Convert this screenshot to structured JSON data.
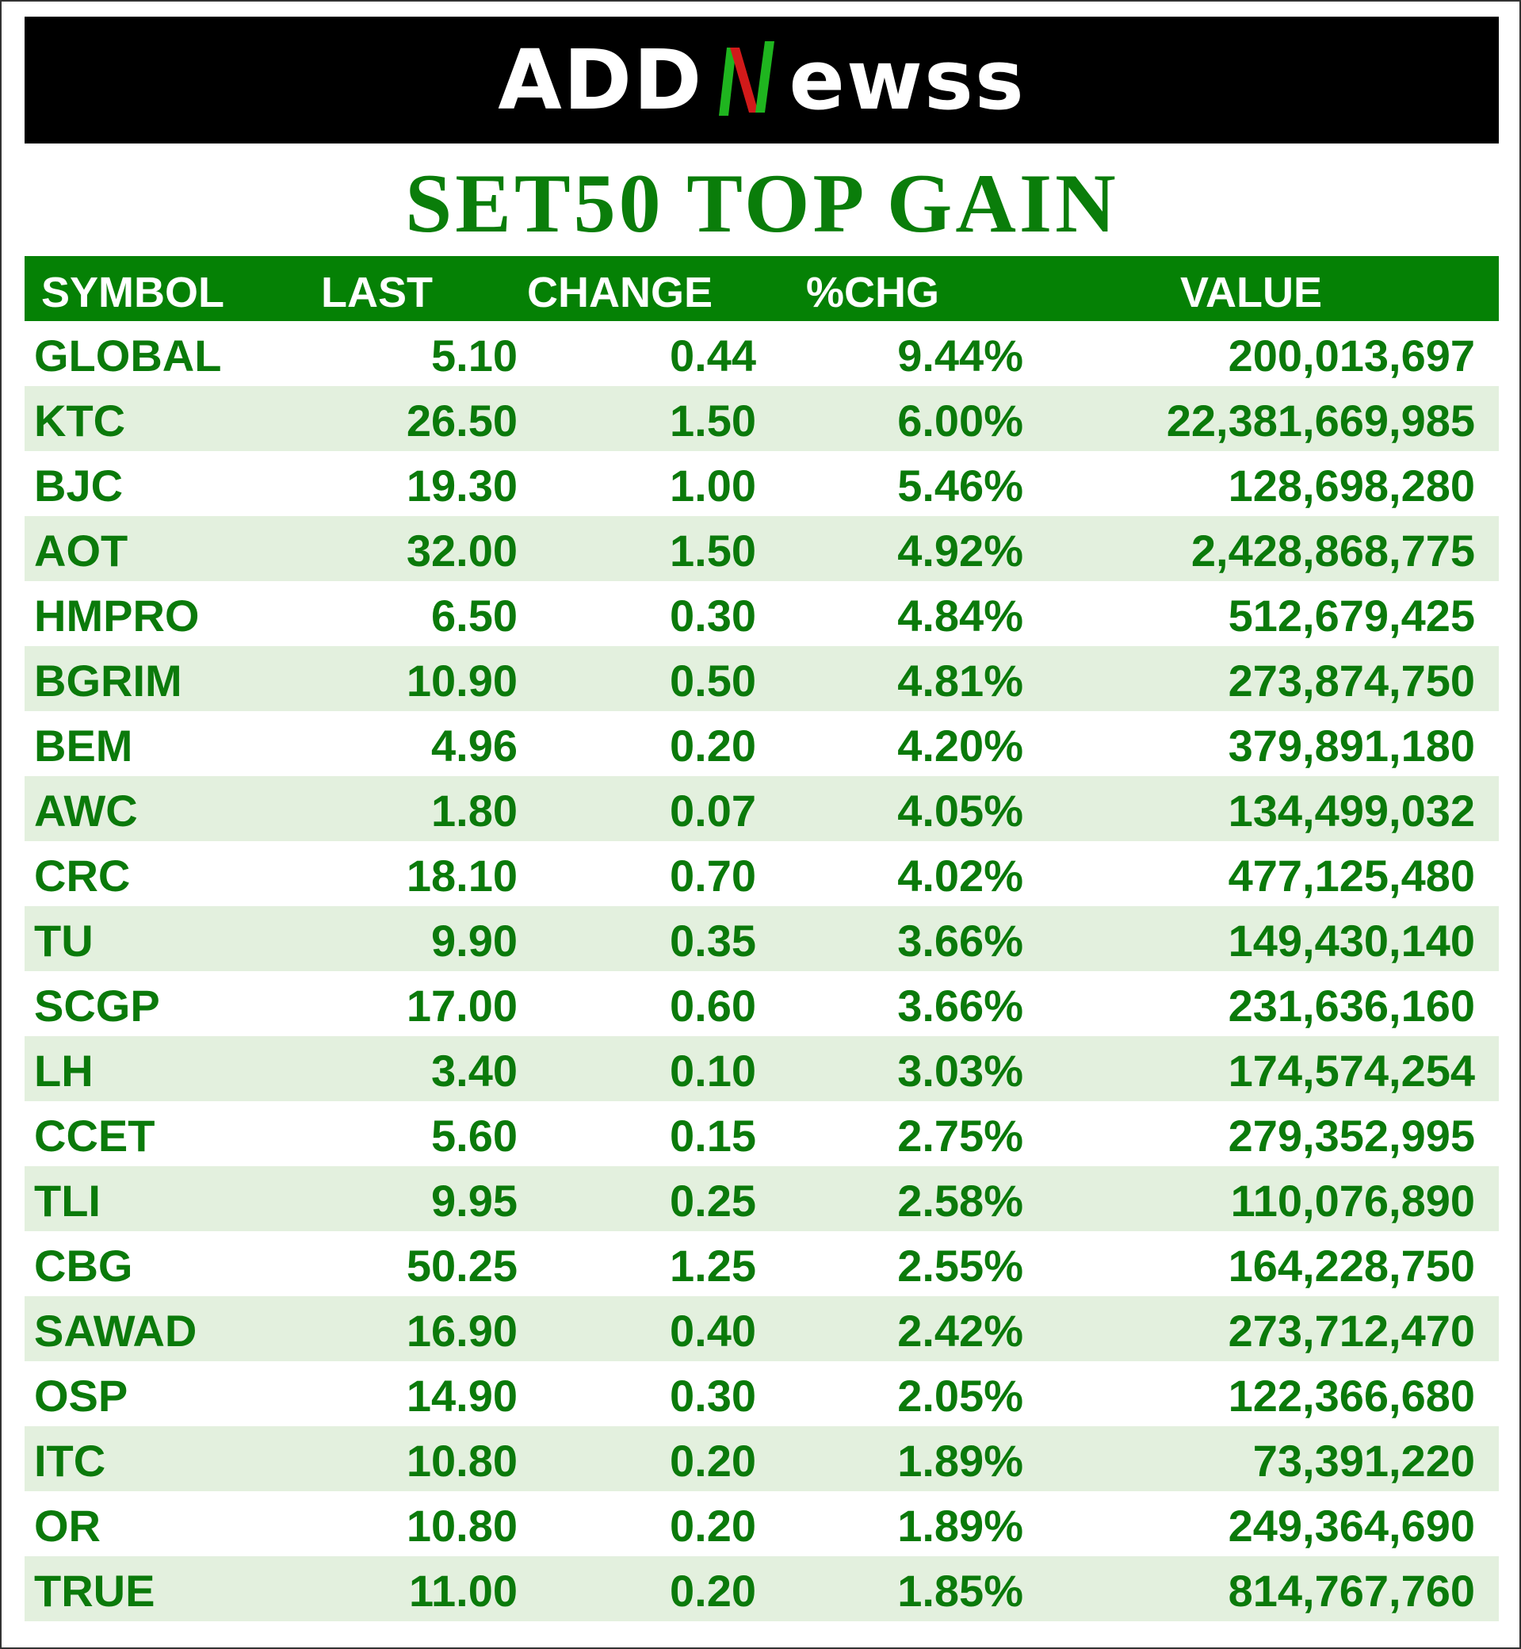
{
  "brand": {
    "logo_left": "ADD",
    "logo_right": "ewss",
    "logo_colors": {
      "green": "#1fb51f",
      "red": "#d11a1a"
    }
  },
  "title": "SET50 TOP GAIN",
  "colors": {
    "header_bg": "#058105",
    "text_green": "#0b7a0b",
    "alt_row": "#e3f0de"
  },
  "table": {
    "columns": [
      "SYMBOL",
      "LAST",
      "CHANGE",
      "%CHG",
      "VALUE"
    ],
    "rows": [
      [
        "GLOBAL",
        "5.10",
        "0.44",
        "9.44%",
        "200,013,697"
      ],
      [
        "KTC",
        "26.50",
        "1.50",
        "6.00%",
        "22,381,669,985"
      ],
      [
        "BJC",
        "19.30",
        "1.00",
        "5.46%",
        "128,698,280"
      ],
      [
        "AOT",
        "32.00",
        "1.50",
        "4.92%",
        "2,428,868,775"
      ],
      [
        "HMPRO",
        "6.50",
        "0.30",
        "4.84%",
        "512,679,425"
      ],
      [
        "BGRIM",
        "10.90",
        "0.50",
        "4.81%",
        "273,874,750"
      ],
      [
        "BEM",
        "4.96",
        "0.20",
        "4.20%",
        "379,891,180"
      ],
      [
        "AWC",
        "1.80",
        "0.07",
        "4.05%",
        "134,499,032"
      ],
      [
        "CRC",
        "18.10",
        "0.70",
        "4.02%",
        "477,125,480"
      ],
      [
        "TU",
        "9.90",
        "0.35",
        "3.66%",
        "149,430,140"
      ],
      [
        "SCGP",
        "17.00",
        "0.60",
        "3.66%",
        "231,636,160"
      ],
      [
        "LH",
        "3.40",
        "0.10",
        "3.03%",
        "174,574,254"
      ],
      [
        "CCET",
        "5.60",
        "0.15",
        "2.75%",
        "279,352,995"
      ],
      [
        "TLI",
        "9.95",
        "0.25",
        "2.58%",
        "110,076,890"
      ],
      [
        "CBG",
        "50.25",
        "1.25",
        "2.55%",
        "164,228,750"
      ],
      [
        "SAWAD",
        "16.90",
        "0.40",
        "2.42%",
        "273,712,470"
      ],
      [
        "OSP",
        "14.90",
        "0.30",
        "2.05%",
        "122,366,680"
      ],
      [
        "ITC",
        "10.80",
        "0.20",
        "1.89%",
        "73,391,220"
      ],
      [
        "OR",
        "10.80",
        "0.20",
        "1.89%",
        "249,364,690"
      ],
      [
        "TRUE",
        "11.00",
        "0.20",
        "1.85%",
        "814,767,760"
      ]
    ]
  }
}
